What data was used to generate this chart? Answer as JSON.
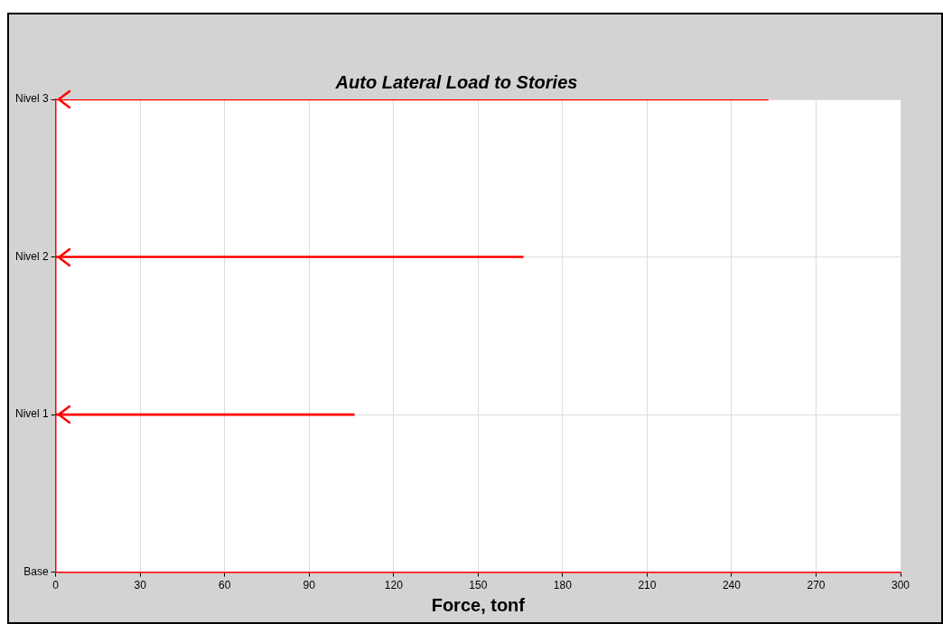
{
  "chart_data": {
    "type": "bar",
    "orientation": "horizontal",
    "title": "Auto Lateral Load to Stories",
    "xlabel": "Force, tonf",
    "categories": [
      "Nivel 3",
      "Nivel 2",
      "Nivel 1",
      "Base"
    ],
    "values": [
      253,
      166,
      106,
      null
    ],
    "color": "#ff0000",
    "xlim": [
      0,
      300
    ],
    "xticks": [
      0,
      30,
      60,
      90,
      120,
      150,
      180,
      210,
      240,
      270,
      300
    ],
    "grid": true,
    "legend": false
  }
}
